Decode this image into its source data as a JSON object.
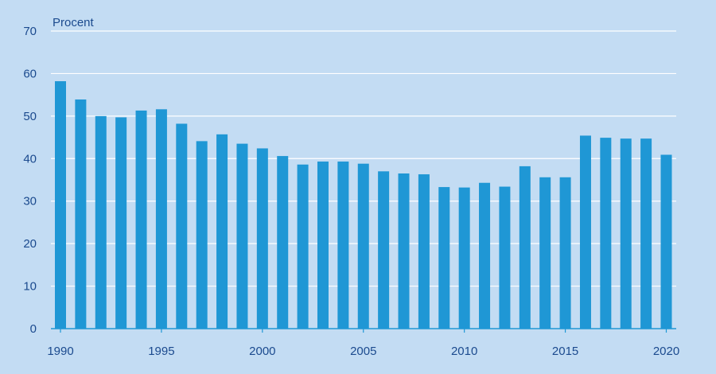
{
  "colors": {
    "background": "#c3dcf3",
    "bar": "#1f97d5",
    "gridline": "#ffffff",
    "text": "#1b4a8e",
    "axis": "#1f97d5"
  },
  "chart_data": {
    "type": "bar",
    "ylabel": "Procent",
    "ylim": [
      0,
      70
    ],
    "y_ticks": [
      0,
      10,
      20,
      30,
      40,
      50,
      60,
      70
    ],
    "x_tick_labels": [
      "1990",
      "1995",
      "2000",
      "2005",
      "2010",
      "2015",
      "2020"
    ],
    "grid": true,
    "categories": [
      1990,
      1991,
      1992,
      1993,
      1994,
      1995,
      1996,
      1997,
      1998,
      1999,
      2000,
      2001,
      2002,
      2003,
      2004,
      2005,
      2006,
      2007,
      2008,
      2009,
      2010,
      2011,
      2012,
      2013,
      2014,
      2015,
      2016,
      2017,
      2018,
      2019,
      2020
    ],
    "values": [
      58.2,
      53.9,
      50.0,
      49.7,
      51.3,
      51.6,
      48.2,
      44.1,
      45.7,
      43.5,
      42.4,
      40.6,
      38.6,
      39.3,
      39.3,
      38.8,
      37.0,
      36.5,
      36.3,
      33.3,
      33.2,
      34.3,
      33.4,
      38.2,
      35.6,
      35.6,
      45.4,
      44.9,
      44.7,
      44.7,
      40.9
    ]
  }
}
